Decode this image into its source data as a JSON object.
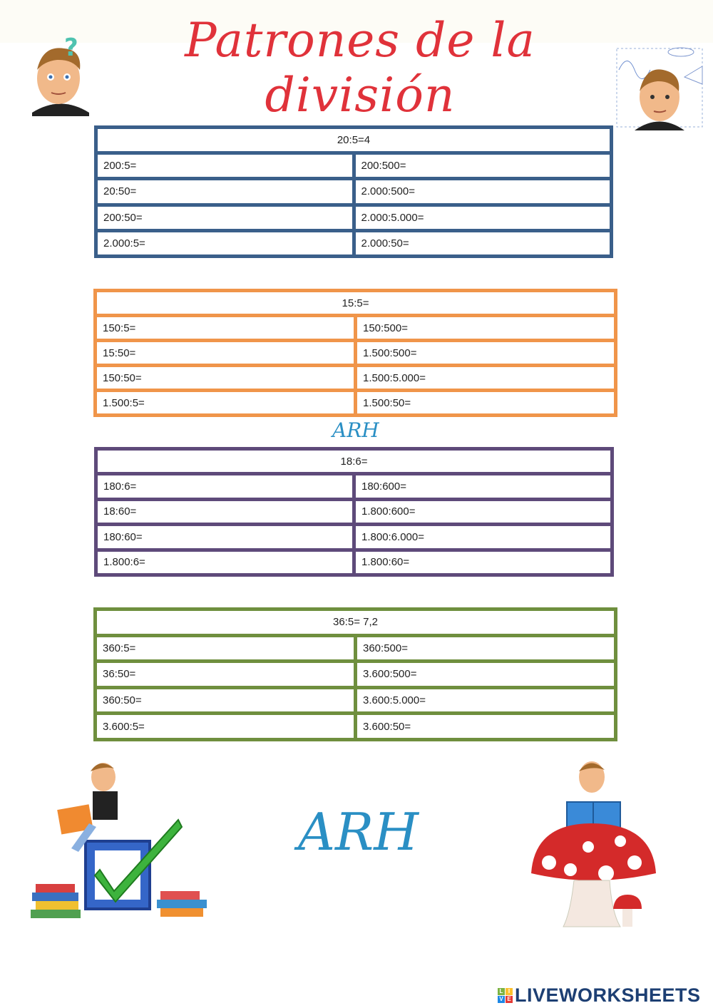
{
  "title": "Patrones de la división",
  "signature": "ARH",
  "logo": {
    "text": "LIVEWORKSHEETS",
    "letters": [
      "L",
      "I",
      "V",
      "E"
    ]
  },
  "colors": {
    "title": "#e0323a",
    "blue": "#3a5f8a",
    "orange": "#f0954a",
    "purple": "#5e4a7a",
    "green": "#6f8f3e"
  },
  "tables": [
    {
      "color": "#3a5f8a",
      "header": "20:5=4",
      "rows": [
        [
          "200:5=",
          "200:500="
        ],
        [
          "20:50=",
          "2.000:500="
        ],
        [
          "200:50=",
          "2.000:5.000="
        ],
        [
          "2.000:5=",
          "2.000:50="
        ]
      ]
    },
    {
      "color": "#f0954a",
      "header": "15:5=",
      "rows": [
        [
          "150:5=",
          "150:500="
        ],
        [
          "15:50=",
          "1.500:500="
        ],
        [
          "150:50=",
          "1.500:5.000="
        ],
        [
          "1.500:5=",
          "1.500:50="
        ]
      ]
    },
    {
      "color": "#5e4a7a",
      "header": "18:6=",
      "rows": [
        [
          "180:6=",
          "180:600="
        ],
        [
          "18:60=",
          "1.800:600="
        ],
        [
          "180:60=",
          "1.800:6.000="
        ],
        [
          "1.800:6=",
          "1.800:60="
        ]
      ]
    },
    {
      "color": "#6f8f3e",
      "header": "36:5= 7,2",
      "rows": [
        [
          "360:5=",
          "360:500="
        ],
        [
          "36:50=",
          "3.600:500="
        ],
        [
          "360:50=",
          "3.600:5.000="
        ],
        [
          "3.600:5=",
          "3.600:50="
        ]
      ]
    }
  ]
}
